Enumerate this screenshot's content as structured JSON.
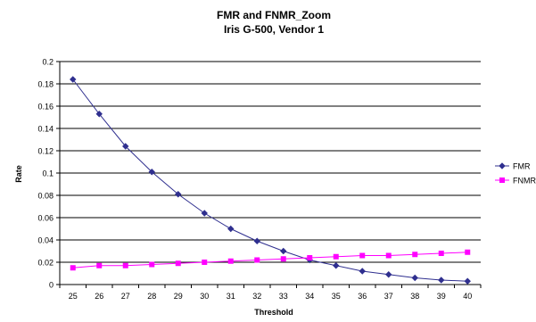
{
  "chart_data": {
    "type": "line",
    "title": "FMR and FNMR_Zoom",
    "subtitle": "Iris G-500, Vendor 1",
    "xlabel": "Threshold",
    "ylabel": "Rate",
    "categories": [
      "25",
      "26",
      "27",
      "28",
      "29",
      "30",
      "31",
      "32",
      "33",
      "34",
      "35",
      "36",
      "37",
      "38",
      "39",
      "40"
    ],
    "ylim": [
      0,
      0.2
    ],
    "yticks": [
      "0",
      "0.02",
      "0.04",
      "0.06",
      "0.08",
      "0.1",
      "0.12",
      "0.14",
      "0.16",
      "0.18",
      "0.2"
    ],
    "grid": true,
    "legend_position": "right",
    "series": [
      {
        "name": "FMR",
        "color": "#2F2F8F",
        "marker": "diamond",
        "values": [
          0.184,
          0.153,
          0.124,
          0.101,
          0.081,
          0.064,
          0.05,
          0.039,
          0.03,
          0.022,
          0.017,
          0.012,
          0.009,
          0.006,
          0.004,
          0.003
        ]
      },
      {
        "name": "FNMR",
        "color": "#FF00FF",
        "marker": "square",
        "values": [
          0.015,
          0.017,
          0.017,
          0.018,
          0.019,
          0.02,
          0.021,
          0.022,
          0.023,
          0.024,
          0.025,
          0.026,
          0.026,
          0.027,
          0.028,
          0.029
        ]
      }
    ]
  }
}
